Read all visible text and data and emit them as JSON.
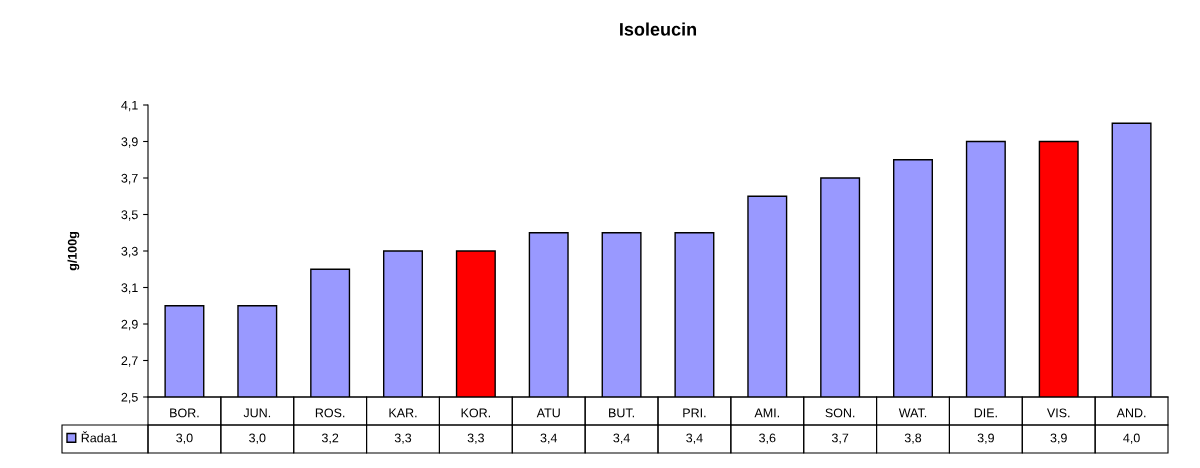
{
  "chart_data": {
    "type": "bar",
    "title": "Isoleucin",
    "ylabel": "g/100g",
    "categories": [
      "BOR.",
      "JUN.",
      "ROS.",
      "KAR.",
      "KOR.",
      "ATU",
      "BUT.",
      "PRI.",
      "AMI.",
      "SON.",
      "WAT.",
      "DIE.",
      "VIS.",
      "AND."
    ],
    "series": [
      {
        "name": "Řada1",
        "color": "#9999ff",
        "colors": [
          "#9999ff",
          "#9999ff",
          "#9999ff",
          "#9999ff",
          "#ff0000",
          "#9999ff",
          "#9999ff",
          "#9999ff",
          "#9999ff",
          "#9999ff",
          "#9999ff",
          "#9999ff",
          "#ff0000",
          "#9999ff"
        ],
        "values": [
          3.0,
          3.0,
          3.2,
          3.3,
          3.3,
          3.4,
          3.4,
          3.4,
          3.6,
          3.7,
          3.8,
          3.9,
          3.9,
          4.0
        ],
        "value_labels": [
          "3,0",
          "3,0",
          "3,2",
          "3,3",
          "3,3",
          "3,4",
          "3,4",
          "3,4",
          "3,6",
          "3,7",
          "3,8",
          "3,9",
          "3,9",
          "4,0"
        ]
      }
    ],
    "ylim": [
      2.5,
      4.1
    ],
    "yticks": [
      {
        "value": 2.5,
        "label": "2,5"
      },
      {
        "value": 2.7,
        "label": "2,7"
      },
      {
        "value": 2.9,
        "label": "2,9"
      },
      {
        "value": 3.1,
        "label": "3,1"
      },
      {
        "value": 3.3,
        "label": "3,3"
      },
      {
        "value": 3.5,
        "label": "3,5"
      },
      {
        "value": 3.7,
        "label": "3,7"
      },
      {
        "value": 3.9,
        "label": "3,9"
      },
      {
        "value": 4.1,
        "label": "4,1"
      }
    ],
    "grid": false,
    "legend": "bottom"
  }
}
